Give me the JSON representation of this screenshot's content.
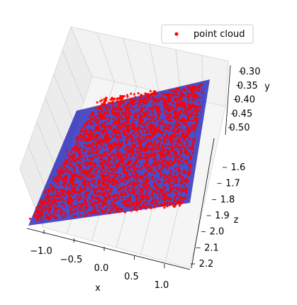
{
  "chart_data": {
    "type": "scatter",
    "projection": "3d",
    "legend": {
      "entries": [
        {
          "label": "point cloud",
          "color": "#ff0000"
        }
      ],
      "placement": "top-right"
    },
    "axes": {
      "x": {
        "label": "x",
        "ticks": [
          "−1.0",
          "−0.5",
          "0.0",
          "0.5",
          "1.0"
        ],
        "range": [
          -1.2,
          1.2
        ]
      },
      "y": {
        "label": "y",
        "ticks": [
          "0.30",
          "0.35",
          "0.40",
          "0.45",
          "0.50"
        ],
        "range": [
          0.28,
          0.52
        ]
      },
      "z": {
        "label": "z",
        "ticks": [
          "1.6",
          "1.7",
          "1.8",
          "1.9",
          "2.0",
          "2.1",
          "2.2"
        ],
        "range": [
          1.55,
          2.25
        ]
      }
    },
    "grid": true,
    "series": [
      {
        "name": "point cloud",
        "kind": "scatter",
        "color": "#ff0000",
        "x_range": [
          -1.15,
          1.15
        ],
        "y_range": [
          0.3,
          0.5
        ],
        "z_range": [
          1.6,
          2.2
        ],
        "point_count_approx": 5000
      },
      {
        "kind": "surface",
        "color": "#1414b4",
        "description_of_plane": "fitted plane spanning x −1.2 to 1.2"
      }
    ]
  }
}
